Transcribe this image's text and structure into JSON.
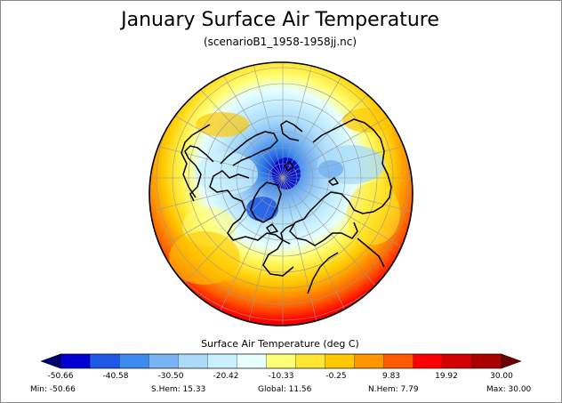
{
  "title": "January Surface Air Temperature",
  "subtitle": "(scenarioB1_1958-1958jj.nc)",
  "colorbar": {
    "title": "Surface Air Temperature (deg C)",
    "colors": [
      "#0000d0",
      "#1e5ae6",
      "#3c8cf0",
      "#78b4f5",
      "#aadcfa",
      "#c8f0ff",
      "#e6ffff",
      "#ffff78",
      "#ffe632",
      "#ffc800",
      "#ff9600",
      "#ff5a00",
      "#ff0000",
      "#d20000",
      "#aa0000"
    ],
    "left_arrow_color": "#00006e",
    "right_arrow_color": "#6e0000",
    "tick_labels": [
      "-50.66",
      "-40.58",
      "-30.50",
      "-20.42",
      "-10.33",
      "-0.25",
      "9.83",
      "19.92",
      "30.00"
    ]
  },
  "stats": {
    "min": "Min: -50.66",
    "shem": "S.Hem: 15.33",
    "global": "Global: 11.56",
    "nhem": "N.Hem: 7.79",
    "max": "Max: 30.00"
  }
}
